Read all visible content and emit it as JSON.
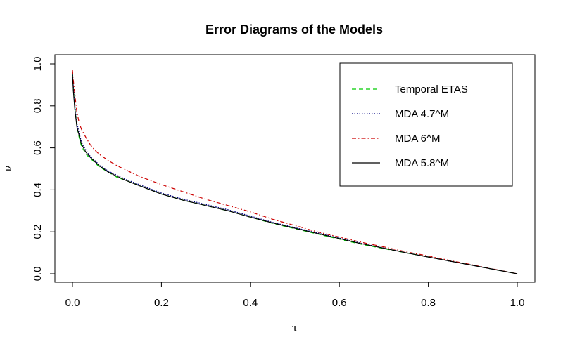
{
  "chart_data": {
    "type": "line",
    "title": "Error Diagrams of the Models",
    "xlabel": "τ",
    "ylabel": "ν",
    "xlim": [
      0,
      1
    ],
    "ylim": [
      0,
      1
    ],
    "x_ticks": [
      "0.0",
      "0.2",
      "0.4",
      "0.6",
      "0.8",
      "1.0"
    ],
    "y_ticks": [
      "0.0",
      "0.2",
      "0.4",
      "0.6",
      "0.8",
      "1.0"
    ],
    "grid": false,
    "legend_position": "top-right",
    "series": [
      {
        "name": "Temporal ETAS",
        "color": "#00cc00",
        "dash": "dashed",
        "x": [
          0,
          0.002,
          0.005,
          0.01,
          0.015,
          0.02,
          0.03,
          0.04,
          0.05,
          0.06,
          0.08,
          0.1,
          0.12,
          0.15,
          0.2,
          0.25,
          0.3,
          0.35,
          0.4,
          0.45,
          0.5,
          0.55,
          0.6,
          0.65,
          0.7,
          0.75,
          0.8,
          0.85,
          0.9,
          0.95,
          1.0
        ],
        "values": [
          0.96,
          0.88,
          0.8,
          0.7,
          0.65,
          0.61,
          0.57,
          0.55,
          0.53,
          0.51,
          0.485,
          0.46,
          0.445,
          0.42,
          0.38,
          0.35,
          0.325,
          0.3,
          0.27,
          0.24,
          0.215,
          0.19,
          0.165,
          0.14,
          0.12,
          0.1,
          0.08,
          0.06,
          0.04,
          0.02,
          0.0
        ]
      },
      {
        "name": "MDA 4.7^M",
        "color": "#000080",
        "dash": "dotted",
        "x": [
          0,
          0.002,
          0.005,
          0.01,
          0.015,
          0.02,
          0.03,
          0.04,
          0.05,
          0.06,
          0.08,
          0.1,
          0.12,
          0.15,
          0.2,
          0.25,
          0.3,
          0.35,
          0.4,
          0.45,
          0.5,
          0.55,
          0.6,
          0.65,
          0.7,
          0.75,
          0.8,
          0.85,
          0.9,
          0.95,
          1.0
        ],
        "values": [
          0.96,
          0.89,
          0.82,
          0.72,
          0.67,
          0.63,
          0.59,
          0.56,
          0.54,
          0.52,
          0.49,
          0.47,
          0.45,
          0.425,
          0.385,
          0.355,
          0.33,
          0.305,
          0.275,
          0.245,
          0.22,
          0.195,
          0.17,
          0.145,
          0.123,
          0.1,
          0.08,
          0.06,
          0.04,
          0.02,
          0.0
        ]
      },
      {
        "name": "MDA 6^M",
        "color": "#cc0000",
        "dash": "dashdot",
        "x": [
          0,
          0.002,
          0.005,
          0.01,
          0.015,
          0.02,
          0.03,
          0.04,
          0.05,
          0.06,
          0.08,
          0.1,
          0.12,
          0.15,
          0.2,
          0.25,
          0.3,
          0.35,
          0.4,
          0.45,
          0.5,
          0.55,
          0.6,
          0.65,
          0.7,
          0.75,
          0.8,
          0.85,
          0.9,
          0.95,
          1.0
        ],
        "values": [
          0.97,
          0.92,
          0.86,
          0.77,
          0.72,
          0.69,
          0.65,
          0.615,
          0.59,
          0.57,
          0.54,
          0.515,
          0.495,
          0.465,
          0.425,
          0.39,
          0.355,
          0.325,
          0.295,
          0.26,
          0.23,
          0.2,
          0.175,
          0.15,
          0.128,
          0.105,
          0.085,
          0.063,
          0.042,
          0.021,
          0.0
        ]
      },
      {
        "name": "MDA 5.8^M",
        "color": "#000000",
        "dash": "solid",
        "x": [
          0,
          0.002,
          0.005,
          0.01,
          0.015,
          0.02,
          0.03,
          0.04,
          0.05,
          0.06,
          0.08,
          0.1,
          0.12,
          0.15,
          0.2,
          0.25,
          0.3,
          0.35,
          0.4,
          0.45,
          0.5,
          0.55,
          0.6,
          0.65,
          0.7,
          0.75,
          0.8,
          0.85,
          0.9,
          0.95,
          1.0
        ],
        "values": [
          0.95,
          0.87,
          0.79,
          0.7,
          0.66,
          0.62,
          0.58,
          0.555,
          0.535,
          0.515,
          0.485,
          0.465,
          0.445,
          0.42,
          0.38,
          0.35,
          0.325,
          0.3,
          0.27,
          0.242,
          0.217,
          0.192,
          0.168,
          0.143,
          0.122,
          0.1,
          0.08,
          0.06,
          0.04,
          0.02,
          0.0
        ]
      }
    ]
  }
}
